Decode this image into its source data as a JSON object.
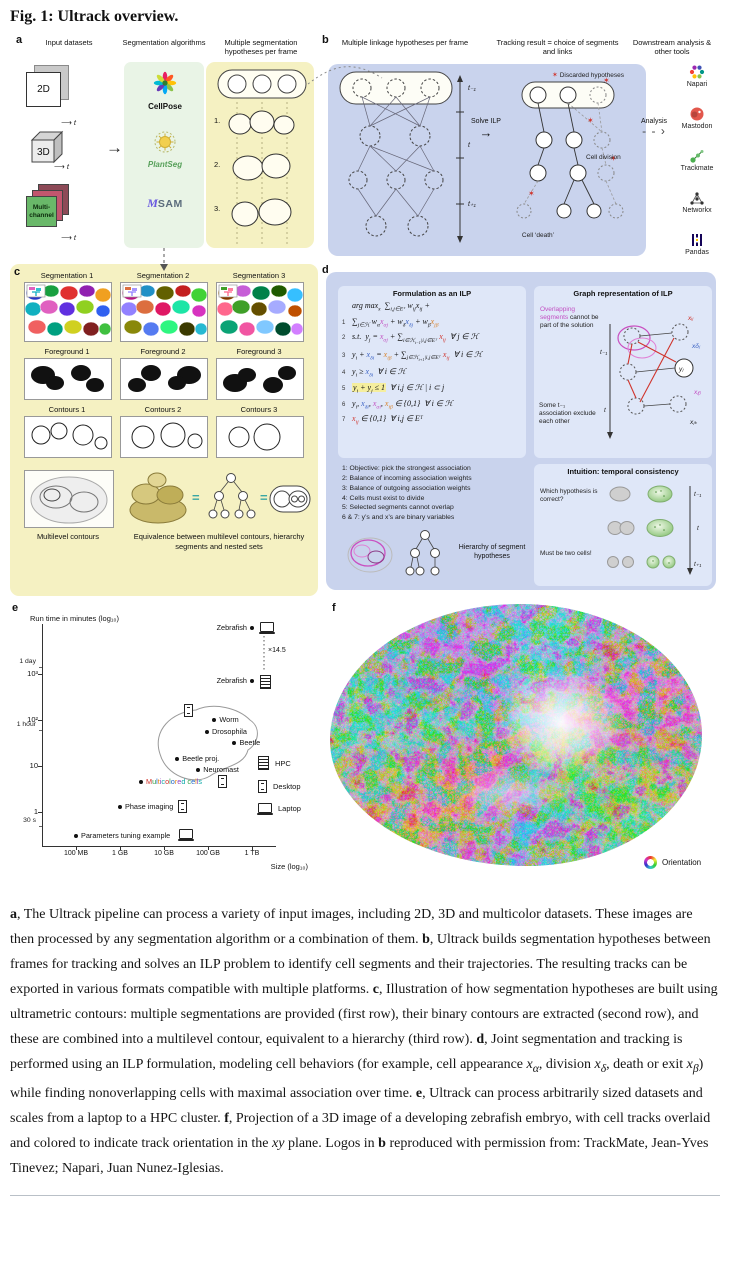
{
  "title": "Fig. 1: Ultrack overview.",
  "colors": {
    "panel_yellow": "#f5f1c2",
    "panel_blue": "#c9d3ed",
    "inner_blue": "#dfe7f8",
    "algorithm_green": "#e9f4e6",
    "magenta": "#c24fc2",
    "red": "#d0342c",
    "highlight": "#f5ee9e"
  },
  "panel_a": {
    "label": "a",
    "col_input": "Input datasets",
    "col_algo": "Segmentation algorithms",
    "col_hyp": "Multiple segmentation hypotheses per frame",
    "inputs": [
      "2D",
      "3D",
      "Multi-channel"
    ],
    "time_axis_label": "t",
    "algorithms": [
      "CellPose",
      "PlantSeg",
      "SAM"
    ],
    "hyp_items": [
      "1.",
      "2.",
      "3."
    ]
  },
  "panel_b": {
    "label": "b",
    "col_linkage": "Multiple linkage hypotheses per frame",
    "col_tracking": "Tracking result = choice of segments and links",
    "col_downstream": "Downstream analysis & other tools",
    "time_labels": [
      "t₋₁",
      "t",
      "t₊₁"
    ],
    "solve_ilp": "Solve ILP",
    "analysis": "Analysis",
    "discarded": "Discarded hypotheses",
    "cell_division": "Cell division",
    "cell_death": "Cell ‘death’",
    "tools": [
      {
        "name": "Napari"
      },
      {
        "name": "Mastodon"
      },
      {
        "name": "Trackmate"
      },
      {
        "name": "Networkx"
      },
      {
        "name": "Pandas"
      }
    ]
  },
  "panel_c": {
    "label": "c",
    "segmentations": [
      "Segmentation 1",
      "Segmentation 2",
      "Segmentation 3"
    ],
    "foregrounds": [
      "Foreground 1",
      "Foreground 2",
      "Foreground 3"
    ],
    "contours": [
      "Contours 1",
      "Contours 2",
      "Contours 3"
    ],
    "multilevel": "Multilevel contours",
    "equivalence": "Equivalence between multilevel contours, hierarchy segments and nested sets"
  },
  "panel_d": {
    "label": "d",
    "ilp_title": "Formulation as an ILP",
    "rows": [
      {
        "n": "",
        "html": "arg max<sub>x</sub>&nbsp; ∑<sub>i,j∈Eᵀ</sub> w<sub>ij</sub>x<sub>ij</sub> +"
      },
      {
        "n": "1",
        "html": "∑<sub>j∈ℋ</sub> w<sub>α</sub><span class='vm'>x<sub>αj</sub></span> + w<sub>δ</sub><span class='vb'>x<sub>δj</sub></span> + w<sub>β</sub><span class='vo'>x<sub>jβ</sub></span>"
      },
      {
        "n": "2",
        "html": "s.t.&nbsp; y<sub>j</sub> = <span class='vm'>x<sub>αj</sub></span> + ∑<sub>i∈ℋ<sub>t−1</sub>|i,j∈Eᵀ</sub> <span class='vr'>x<sub>ij</sub></span> &nbsp;∀ j ∈ ℋ"
      },
      {
        "n": "3",
        "html": "y<sub>i</sub> + <span class='vb'>x<sub>δi</sub></span> = <span class='vo'>x<sub>iβ</sub></span> + ∑<sub>j∈ℋ<sub>t+1</sub>|i,j∈Eᵀ</sub> <span class='vr'>x<sub>ij</sub></span> &nbsp;∀ i ∈ ℋ"
      },
      {
        "n": "4",
        "html": "y<sub>i</sub> ≥ <span class='vb'>x<sub>δi</sub></span> &nbsp;∀ i ∈ ℋ"
      },
      {
        "n": "5",
        "html": "<span class='hl'>y<sub>i</sub> + y<sub>j</sub> ≤ 1</span> &nbsp;∀ i,j ∈ ℋ | i ⊂ j"
      },
      {
        "n": "6",
        "html": "y<sub>i</sub>, <span class='vb'>x<sub>δi</sub></span>, <span class='vm'>x<sub>αi</sub></span>, <span class='vo'>x<sub>iβ</sub></span> ∈ {0,1} &nbsp;∀ i ∈ ℋ"
      },
      {
        "n": "7",
        "html": "<span class='vr'>x<sub>ij</sub></span> ∈ {0,1} &nbsp;∀ i,j ∈ Eᵀ"
      }
    ],
    "notes": [
      "1: Objective: pick the strongest association",
      "2: Balance of incoming association weights",
      "3: Balance of outgoing association weights",
      "4: Cells must exist to divide",
      "5: Selected segments cannot overlap",
      "6 & 7: y’s and x’s are binary variables"
    ],
    "hierarchy_caption": "Hierarchy of segment hypotheses",
    "graph_title": "Graph representation of ILP",
    "graph_note_top_html": "<span class='vm'>Overlapping segments</span> cannot be part of the solution",
    "graph_note_bottom": "Some t₋₁ association exclude each other",
    "graph_labels": {
      "xij": "xᵢⱼ",
      "xdj": "xδⱼ",
      "yj": "yⱼ",
      "xjb": "xⱼᵦ",
      "xjk": "xⱼₖ"
    },
    "graph_time": [
      "t₋₁",
      "t"
    ],
    "intuition_title": "Intuition: temporal consistency",
    "intuition_question": "Which hypothesis is correct?",
    "intuition_answer": "Must be two cells!",
    "intuition_time": [
      "t₋₁",
      "t",
      "t₊₁"
    ]
  },
  "panel_e": {
    "label": "e"
  },
  "chart_data": {
    "type": "scatter",
    "title": "Run time in minutes (log₁₀)",
    "xlabel": "Size (log₁₀)",
    "x_ticks": [
      {
        "label": "100 MB",
        "gb": 0.1
      },
      {
        "label": "1 GB",
        "gb": 1
      },
      {
        "label": "10 GB",
        "gb": 10
      },
      {
        "label": "100 GB",
        "gb": 100
      },
      {
        "label": "1 TB",
        "gb": 1000
      }
    ],
    "y_ticks": [
      {
        "label": "10³",
        "minutes": 1000
      },
      {
        "label": "10²",
        "minutes": 100
      },
      {
        "label": "10",
        "minutes": 10
      },
      {
        "label": "1",
        "minutes": 1
      }
    ],
    "y_marks": [
      {
        "label": "1 day",
        "minutes": 1440
      },
      {
        "label": "1 hour",
        "minutes": 60
      },
      {
        "label": "30 s",
        "minutes": 0.5
      }
    ],
    "points": [
      {
        "label": "Zebrafish",
        "gb": 1000,
        "minutes": 10000,
        "device": "laptop",
        "side": "left"
      },
      {
        "label": "Zebrafish",
        "gb": 1000,
        "minutes": 690,
        "device": "hpc",
        "side": "left"
      },
      {
        "label": "Worm",
        "gb": 140,
        "minutes": 100,
        "device": "desktop",
        "side": "right",
        "icon_off": [
          -30,
          -16
        ]
      },
      {
        "label": "Drosophila",
        "gb": 95,
        "minutes": 55,
        "side": "right"
      },
      {
        "label": "Beetle",
        "gb": 400,
        "minutes": 32,
        "side": "right"
      },
      {
        "label": "Beetle proj.",
        "gb": 20,
        "minutes": 14,
        "side": "right"
      },
      {
        "label": "Neuromast",
        "gb": 60,
        "minutes": 8,
        "side": "right"
      },
      {
        "label": "Multicolored cells",
        "gb": 3,
        "minutes": 4.5,
        "device": "desktop",
        "side": "right",
        "multicolor": true
      },
      {
        "label": "Phase imaging",
        "gb": 1,
        "minutes": 1.3,
        "device": "desktop",
        "side": "right"
      },
      {
        "label": "Parameters tuning example",
        "gb": 0.1,
        "minutes": 0.3,
        "device": "laptop",
        "side": "right"
      }
    ],
    "speedup_label": "×14.5",
    "legend": [
      {
        "label": "HPC",
        "icon": "hpc"
      },
      {
        "label": "Desktop",
        "icon": "desktop"
      },
      {
        "label": "Laptop",
        "icon": "laptop"
      }
    ]
  },
  "panel_f": {
    "label": "f",
    "orientation_label": "Orientation"
  },
  "caption_html": "<b>a</b>, The Ultrack pipeline can process a variety of input images, including 2D, 3D and multicolor datasets. These images are then processed by any segmentation algorithm or a combination of them. <b>b</b>, Ultrack builds segmentation hypotheses between frames for tracking and solves an ILP problem to identify cell segments and their trajectories. The resulting tracks can be exported in various formats compatible with multiple platforms. <b>c</b>, Illustration of how segmentation hypotheses are built using ultrametric contours: multiple segmentations are provided (first row), their binary contours are extracted (second row), and these are combined into a multilevel contour, equivalent to a hierarchy (third row). <b>d</b>, Joint segmentation and tracking is performed using an ILP formulation, modeling cell behaviors (for example, cell appearance <i>x<sub>α</sub></i>, division <i>x<sub>δ</sub></i>, death or exit <i>x<sub>β</sub></i>) while finding nonoverlapping cells with maximal association over time. <b>e</b>, Ultrack can process arbitrarily sized datasets and scales from a laptop to a HPC cluster. <b>f</b>, Projection of a 3D image of a developing zebrafish embryo, with cell tracks overlaid and colored to indicate track orientation in the <i>xy</i> plane. Logos in <b>b</b> reproduced with permission from: TrackMate, Jean-Yves Tinevez; Napari, Juan Nunez-Iglesias."
}
